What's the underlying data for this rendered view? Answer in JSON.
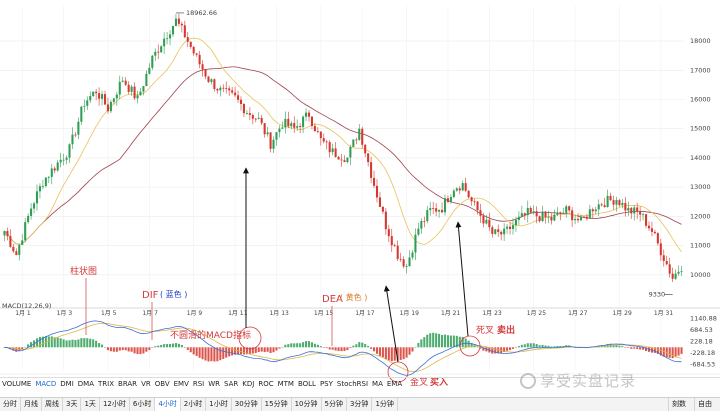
{
  "chart_data": [
    {
      "type": "candlestick",
      "title": "",
      "ylim": [
        9000,
        19200
      ],
      "y_ticks": [
        18000,
        17000,
        16000,
        15000,
        14000,
        13000,
        12000,
        11000,
        10000
      ],
      "x_ticks": [
        "1月 1",
        "1月 3",
        "1月 5",
        "1月 7",
        "1月 9",
        "1月 11",
        "1月 13",
        "1月 15",
        "1月 17",
        "1月 19",
        "1月 21",
        "1月 23",
        "1月 25",
        "1月 27",
        "1月 29",
        "1月 31"
      ],
      "max_label": "18962.66",
      "min_label": "9330",
      "grid": true,
      "candles": [],
      "ma_fast_color": "#e8c25a",
      "ma_slow_color": "#a0404a"
    },
    {
      "type": "bar",
      "title": "MACD(12,26,9)",
      "ylim": [
        -900,
        1400
      ],
      "y_ticks": [
        "1140.88",
        "684.53",
        "228.18",
        "-228.18",
        "-684.53"
      ],
      "histogram": [],
      "dif_color": "#3a6fd8",
      "dea_color": "#e0b64a"
    }
  ],
  "toolbar_indicators": [
    "VOLUME",
    "MACD",
    "DMI",
    "DMA",
    "TRIX",
    "BRAR",
    "VR",
    "OBV",
    "EMV",
    "RSI",
    "WR",
    "SAR",
    "KDJ",
    "ROC",
    "MTM",
    "BOLL",
    "PSY",
    "StochRSI",
    "MA",
    "EMA"
  ],
  "active_indicator": "MACD",
  "timeframes": [
    "分时",
    "月线",
    "周线",
    "3天",
    "1天",
    "12小时",
    "6小时",
    "4小时",
    "2小时",
    "1小时",
    "30分钟",
    "15分钟",
    "10分钟",
    "5分钟",
    "3分钟",
    "1分钟"
  ],
  "active_timeframe": "4小时",
  "right_buttons": [
    "刻数",
    "自由"
  ],
  "annotations": {
    "histogram": "柱状图",
    "dif": "DIF",
    "dif_color_name": "( 蓝色 )",
    "dea": "DEA",
    "dea_color_name": "( 黄色 )",
    "not_smooth": "不圆滑的MACD指标",
    "golden_cross": "金叉",
    "golden_buy": "买入",
    "death_cross": "死叉",
    "death_sell": "卖出"
  },
  "watermark": "享受实盘记录",
  "colors": {
    "up": "#2e9e55",
    "down": "#d6382f",
    "annotation": "#d23a3a",
    "blue": "#1e3fc8"
  }
}
